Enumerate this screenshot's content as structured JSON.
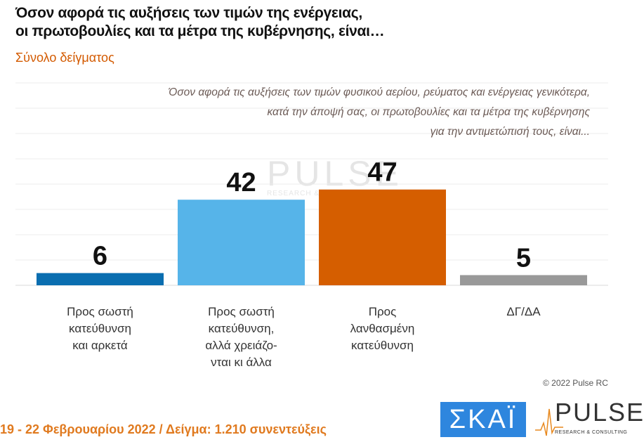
{
  "title_line1": "Όσον αφορά τις αυξήσεις των τιμών της ενέργειας,",
  "title_line2": "οι πρωτοβουλίες και τα μέτρα της κυβέρνησης, είναι…",
  "subtitle": "Σύνολο δείγματος",
  "question_lines": [
    "Όσον αφορά τις αυξήσεις των τιμών φυσικού αερίου, ρεύματος και ενέργειας γενικότερα,",
    "κατά την άποψή σας, οι πρωτοβουλίες και τα μέτρα της κυβέρνησης",
    "για την αντιμετώπισή τους, είναι..."
  ],
  "chart_data": {
    "type": "bar",
    "categories": [
      "Προς σωστή κατεύθυνση και αρκετά",
      "Προς σωστή κατεύθυνση, αλλά χρειάζο-νται κι άλλα",
      "Προς λανθασμένη κατεύθυνση",
      "ΔΓ/ΔΑ"
    ],
    "category_lines": [
      [
        "Προς σωστή",
        "κατεύθυνση",
        "και αρκετά"
      ],
      [
        "Προς σωστή",
        "κατεύθυνση,",
        "αλλά χρειάζο-",
        "νται κι άλλα"
      ],
      [
        "Προς",
        "λανθασμένη",
        "κατεύθυνση"
      ],
      [
        "ΔΓ/ΔΑ"
      ]
    ],
    "values": [
      6,
      42,
      47,
      5
    ],
    "colors": [
      "#0a6eb0",
      "#56b4e9",
      "#d55e00",
      "#999999"
    ],
    "ylim": [
      0,
      50
    ],
    "grid": true
  },
  "copyright": "© 2022 Pulse RC",
  "footer": "19 - 22  Φεβρουαρίου  2022  /  Δείγμα:  1.210 συνεντεύξεις",
  "logos": {
    "skai": "ΣΚΑΪ",
    "pulse": "PULSE",
    "pulse_sub": "RESEARCH & CONSULTING"
  }
}
